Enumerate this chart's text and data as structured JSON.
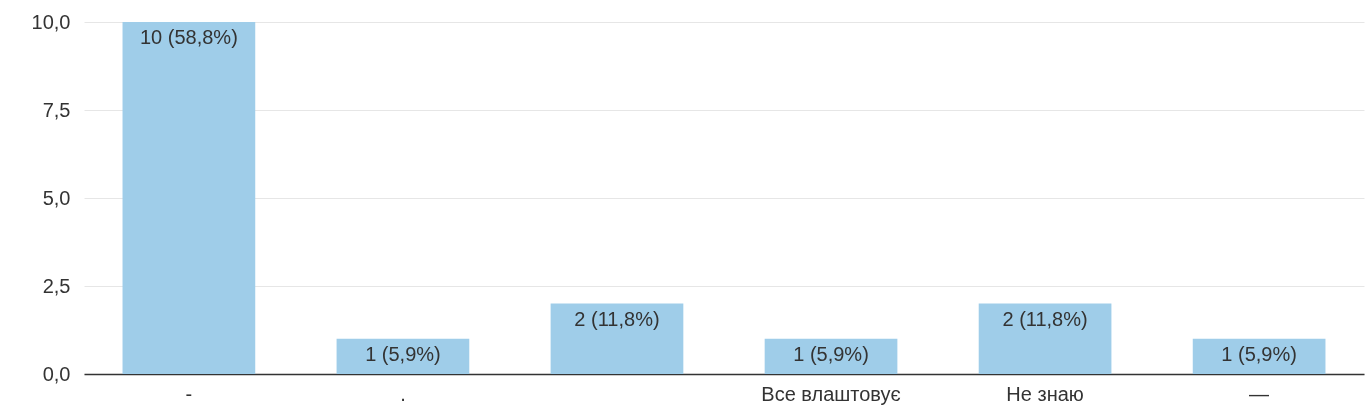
{
  "chart_data": {
    "type": "bar",
    "categories": [
      "-",
      ".",
      null,
      "Все влаштовує",
      "Не знаю",
      "—"
    ],
    "values": [
      10,
      1,
      2,
      1,
      2,
      1
    ],
    "value_labels": [
      "10 (58,8%)",
      "1 (5,9%)",
      "2 (11,8%)",
      "1 (5,9%)",
      "2 (11,8%)",
      "1 (5,9%)"
    ],
    "color": "#9fcde9",
    "ylim": [
      0,
      10
    ],
    "yticks": [
      {
        "value": 0,
        "label": "0,0"
      },
      {
        "value": 2.5,
        "label": "2,5"
      },
      {
        "value": 5,
        "label": "5,0"
      },
      {
        "value": 7.5,
        "label": "7,5"
      },
      {
        "value": 10,
        "label": "10,0"
      }
    ],
    "grid": "y"
  }
}
